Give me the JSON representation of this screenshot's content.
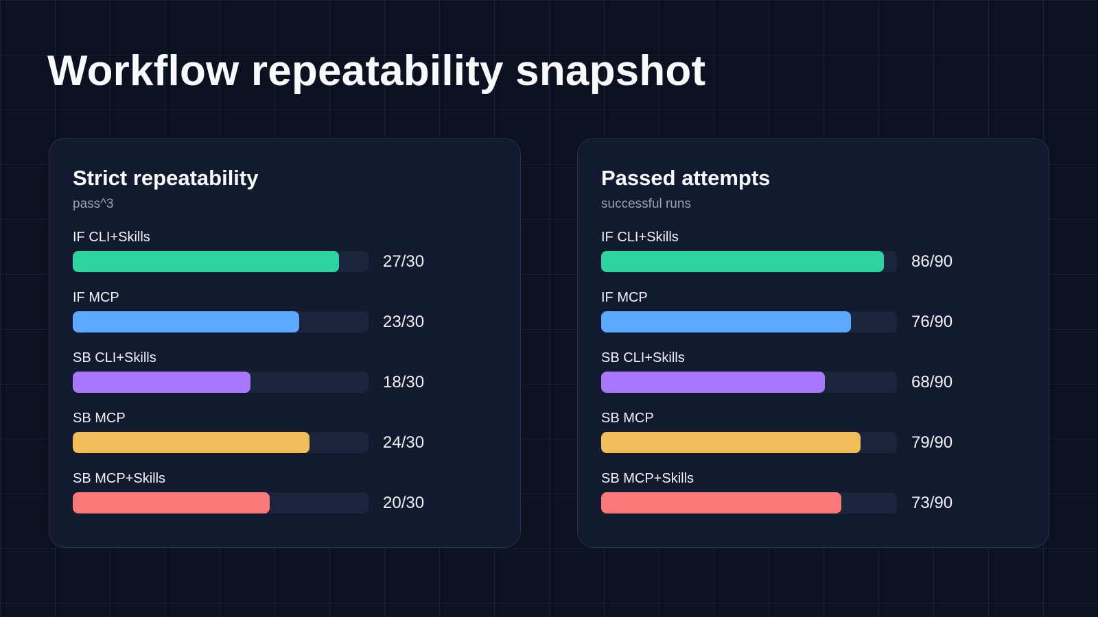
{
  "page": {
    "title": "Workflow repeatability snapshot"
  },
  "colors": {
    "background": "#0b1120",
    "panel": "#111a2e",
    "track": "#1a243a",
    "IF CLI+Skills": "#2dd4a0",
    "IF MCP": "#5ba8ff",
    "SB CLI+Skills": "#a778fb",
    "SB MCP": "#f2be5a",
    "SB MCP+Skills": "#fb7878"
  },
  "chart_data": [
    {
      "type": "bar",
      "orientation": "horizontal",
      "title": "Strict repeatability",
      "subtitle": "pass^3",
      "max": 30,
      "categories": [
        "IF CLI+Skills",
        "IF MCP",
        "SB CLI+Skills",
        "SB MCP",
        "SB MCP+Skills"
      ],
      "values": [
        27,
        23,
        18,
        24,
        20
      ],
      "value_labels": [
        "27/30",
        "23/30",
        "18/30",
        "24/30",
        "20/30"
      ],
      "colors": [
        "#2dd4a0",
        "#5ba8ff",
        "#a778fb",
        "#f2be5a",
        "#fb7878"
      ]
    },
    {
      "type": "bar",
      "orientation": "horizontal",
      "title": "Passed attempts",
      "subtitle": "successful runs",
      "max": 90,
      "categories": [
        "IF CLI+Skills",
        "IF MCP",
        "SB CLI+Skills",
        "SB MCP",
        "SB MCP+Skills"
      ],
      "values": [
        86,
        76,
        68,
        79,
        73
      ],
      "value_labels": [
        "86/90",
        "76/90",
        "68/90",
        "79/90",
        "73/90"
      ],
      "colors": [
        "#2dd4a0",
        "#5ba8ff",
        "#a778fb",
        "#f2be5a",
        "#fb7878"
      ]
    }
  ]
}
